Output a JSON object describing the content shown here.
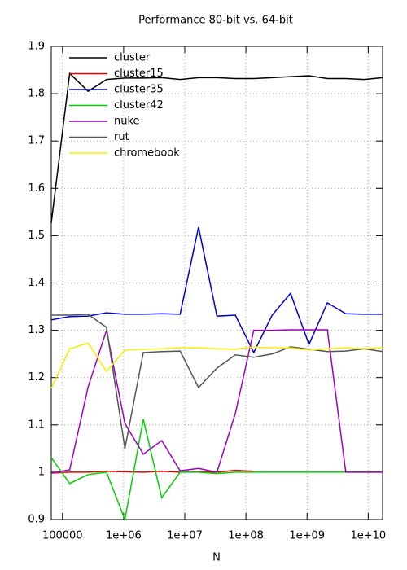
{
  "chart_data": {
    "type": "line",
    "title": "Performance 80-bit vs. 64-bit",
    "x_label": "N",
    "x": [
      65536,
      131072,
      262144,
      524288,
      1048576,
      2097152,
      4194304,
      8388608,
      16777216,
      33554432,
      67108864,
      134217728,
      268435456,
      536870912,
      1073741824,
      2147483648,
      4294967296,
      8589934592,
      17179869184
    ],
    "xlim": [
      65536,
      17179869184
    ],
    "xticks": [
      100000,
      {
        "value": 1000000,
        "label": "1e+06"
      },
      {
        "value": 10000000,
        "label": "1e+07"
      },
      {
        "value": 100000000,
        "label": "1e+08"
      },
      {
        "value": 1000000000,
        "label": "1e+09"
      },
      {
        "value": 10000000000,
        "label": "1e+10"
      }
    ],
    "xscale": "log",
    "ylim": [
      0.9,
      1.9
    ],
    "yticks": [
      0.9,
      1,
      1.1,
      1.2,
      1.3,
      1.4,
      1.5,
      1.6,
      1.7,
      1.8,
      1.9
    ],
    "grid": true,
    "legend": "upper left",
    "series": [
      {
        "name": "cluster",
        "color": "#000000",
        "values": [
          1.527,
          1.843,
          1.805,
          1.83,
          1.833,
          1.833,
          1.834,
          1.83,
          1.834,
          1.834,
          1.832,
          1.832,
          1.834,
          1.836,
          1.838,
          1.832,
          1.832,
          1.83,
          1.834
        ]
      },
      {
        "name": "cluster15",
        "color": "#e00000",
        "values": [
          0.998,
          1.0,
          1.0,
          1.002,
          1.001,
          1.0,
          1.002,
          1.0,
          1.001,
          1.0,
          1.004,
          1.002,
          null,
          null,
          null,
          null,
          null,
          null,
          null
        ]
      },
      {
        "name": "cluster35",
        "color": "#0000d0",
        "values": [
          1.322,
          1.329,
          1.33,
          1.337,
          1.334,
          1.334,
          1.335,
          1.334,
          1.518,
          1.33,
          1.332,
          1.253,
          1.332,
          1.378,
          1.27,
          1.358,
          1.335,
          1.334,
          1.334
        ]
      },
      {
        "name": "cluster42",
        "color": "#00d000",
        "values": [
          1.031,
          0.976,
          0.995,
          1.0,
          0.9,
          1.112,
          0.946,
          1.0,
          1.0,
          0.997,
          1.0,
          1.0,
          1.0,
          1.0,
          1.0,
          1.0,
          1.0,
          1.0,
          1.0
        ]
      },
      {
        "name": "nuke",
        "color": "#a000c0",
        "values": [
          0.998,
          1.005,
          1.18,
          1.3,
          1.103,
          1.038,
          1.067,
          1.003,
          1.008,
          1.0,
          1.124,
          1.3,
          1.3,
          1.301,
          1.301,
          1.301,
          1.0,
          1.0,
          1.0
        ]
      },
      {
        "name": "rut",
        "color": "#555555",
        "values": [
          1.332,
          1.332,
          1.334,
          1.306,
          1.05,
          1.253,
          1.255,
          1.256,
          1.179,
          1.22,
          1.248,
          1.243,
          1.25,
          1.265,
          1.26,
          1.255,
          1.256,
          1.261,
          1.255
        ]
      },
      {
        "name": "chromebook",
        "color": "#f0f000",
        "values": [
          1.177,
          1.261,
          1.273,
          1.213,
          1.258,
          1.26,
          1.261,
          1.263,
          1.263,
          1.261,
          1.26,
          1.265,
          1.263,
          1.263,
          1.258,
          1.261,
          1.263,
          1.261,
          1.263
        ]
      }
    ]
  }
}
